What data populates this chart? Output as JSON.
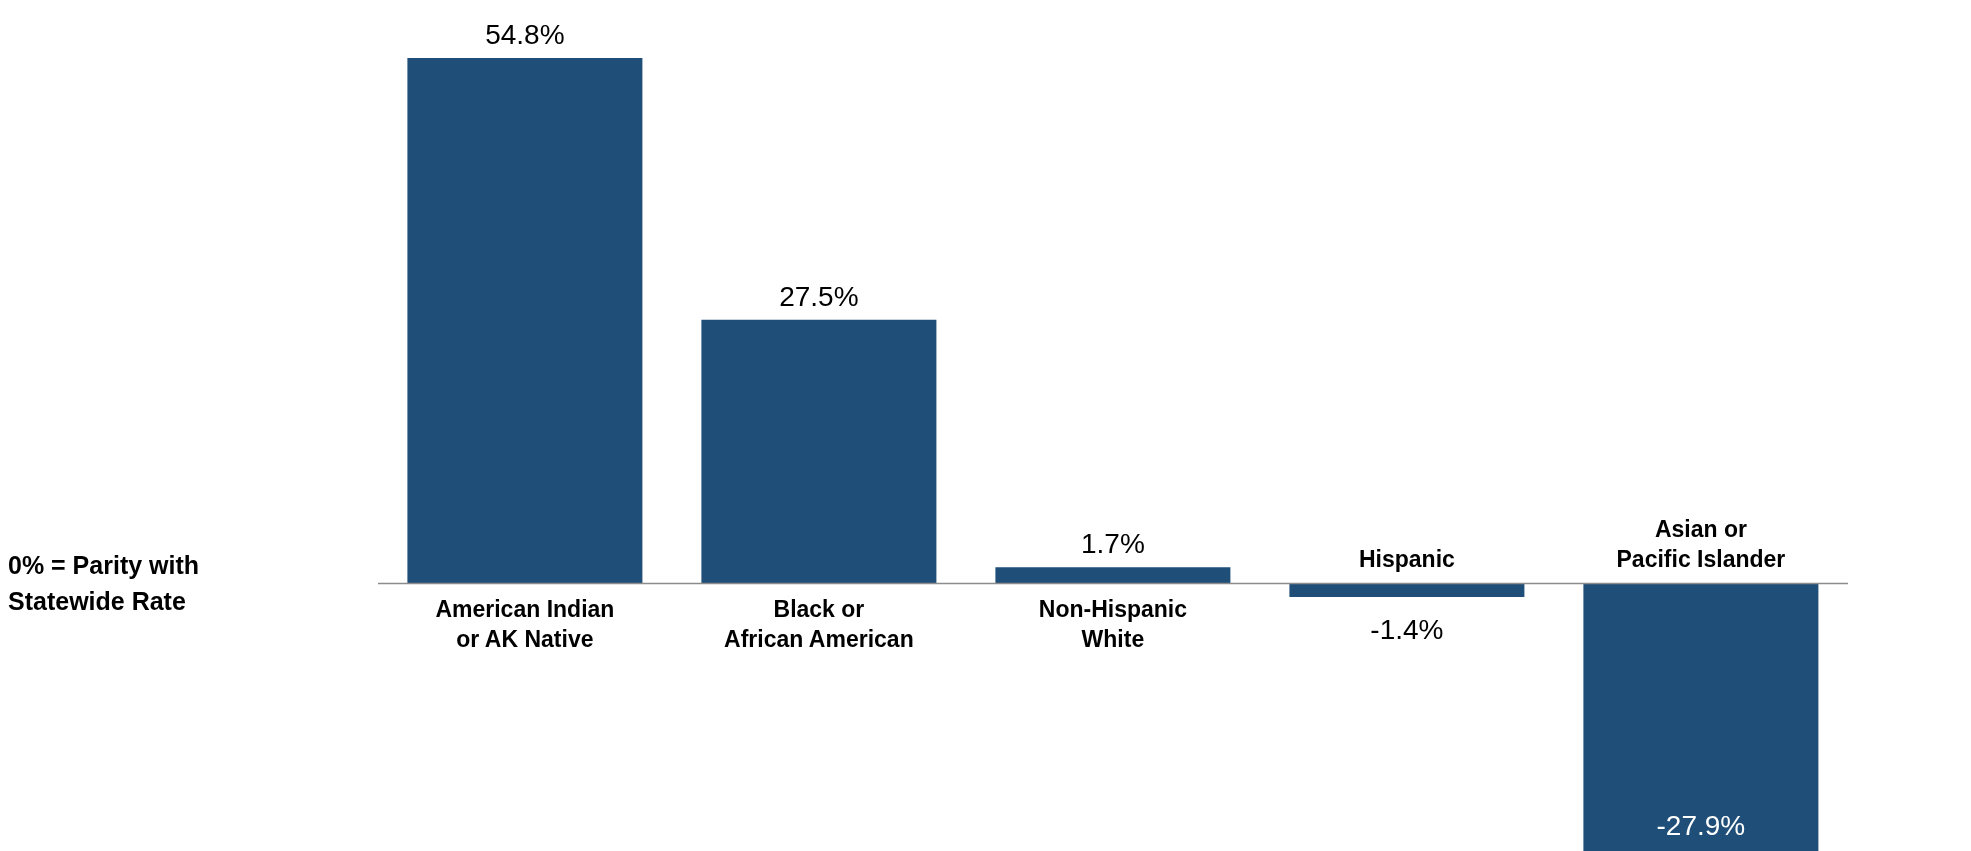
{
  "chart_data": {
    "type": "bar",
    "categories": [
      "American Indian\nor AK Native",
      "Black or\nAfrican American",
      "Non-Hispanic\nWhite",
      "Hispanic",
      "Asian or\nPacific Islander"
    ],
    "values": [
      54.8,
      27.5,
      1.7,
      -1.4,
      -27.9
    ],
    "value_labels": [
      "54.8%",
      "27.5%",
      "1.7%",
      "-1.4%",
      "-27.9%"
    ],
    "color": "#1f4e79",
    "annotations": [
      "0% = Parity with\nStatewide Rate"
    ]
  }
}
